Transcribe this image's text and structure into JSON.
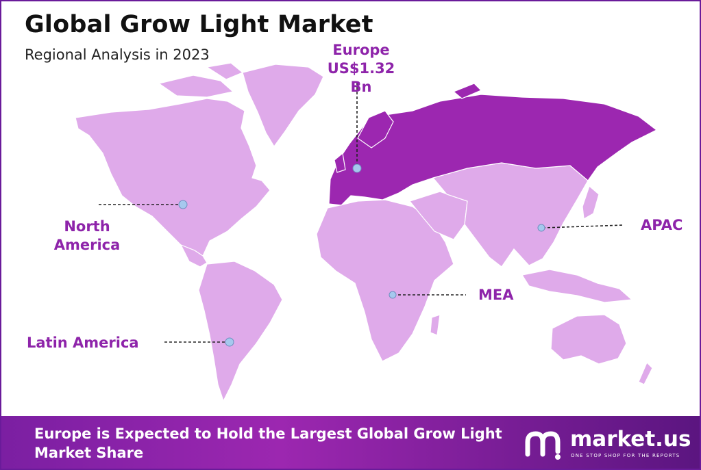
{
  "title": "Global Grow Light Market",
  "subtitle": "Regional Analysis in 2023",
  "colors": {
    "highlight_region": "#9c27b0",
    "other_regions": "#dfaaea",
    "label": "#8e24aa",
    "marker": "#a6c8ee"
  },
  "regions": {
    "europe": {
      "name": "Europe",
      "value": "US$1.32 Bn",
      "highlighted": true
    },
    "north_america": {
      "name_line1": "North",
      "name_line2": "America"
    },
    "apac": {
      "name": "APAC"
    },
    "mea": {
      "name": "MEA"
    },
    "latin_america": {
      "name": "Latin America"
    }
  },
  "footer": {
    "headline": "Europe is Expected to Hold the Largest Global Grow Light Market Share",
    "logo_icon": "market-us-logo-icon",
    "logo_name": "market.us",
    "logo_tagline": "ONE STOP SHOP FOR THE REPORTS"
  }
}
